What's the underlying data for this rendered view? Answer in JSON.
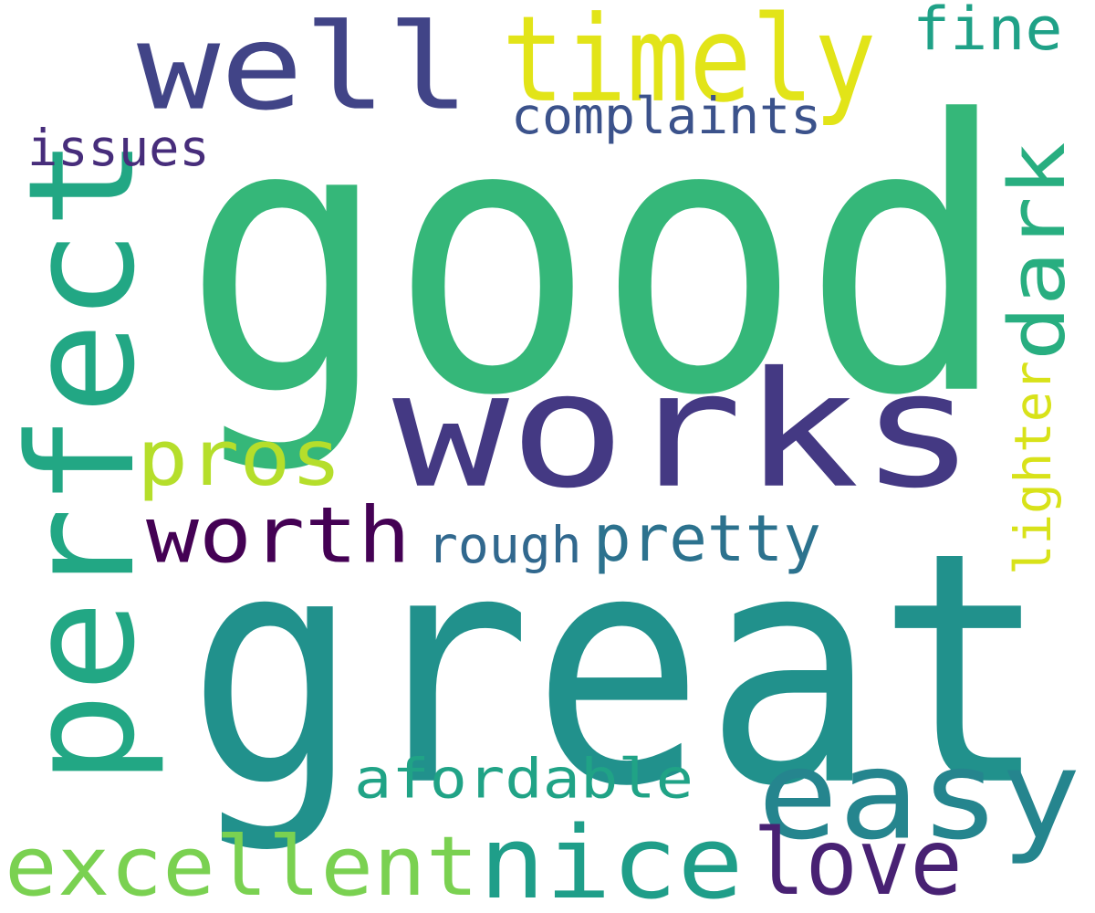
{
  "word_cloud": {
    "words": [
      {
        "id": "good",
        "text": "good",
        "color": "#35b779"
      },
      {
        "id": "great",
        "text": "great",
        "color": "#21918c"
      },
      {
        "id": "works",
        "text": "works",
        "color": "#443983"
      },
      {
        "id": "perfect",
        "text": "perfect",
        "color": "#22a784"
      },
      {
        "id": "well",
        "text": "well",
        "color": "#414487"
      },
      {
        "id": "timely",
        "text": "timely",
        "color": "#e2e418"
      },
      {
        "id": "easy",
        "text": "easy",
        "color": "#25858e"
      },
      {
        "id": "nice",
        "text": "nice",
        "color": "#1f9e89"
      },
      {
        "id": "excellent",
        "text": "excellent",
        "color": "#7ad151"
      },
      {
        "id": "love",
        "text": "love",
        "color": "#482173"
      },
      {
        "id": "worth",
        "text": "worth",
        "color": "#440154"
      },
      {
        "id": "pros",
        "text": "pros",
        "color": "#b5de2b"
      },
      {
        "id": "dark",
        "text": "dark",
        "color": "#28ae80"
      },
      {
        "id": "fine",
        "text": "fine",
        "color": "#1fa187"
      },
      {
        "id": "complaints",
        "text": "complaints",
        "color": "#3b528b"
      },
      {
        "id": "issues",
        "text": "issues",
        "color": "#472d7b"
      },
      {
        "id": "pretty",
        "text": "pretty",
        "color": "#2c728e"
      },
      {
        "id": "rough",
        "text": "rough",
        "color": "#31688e"
      },
      {
        "id": "lighter",
        "text": "lighter",
        "color": "#d8e219"
      },
      {
        "id": "afordable",
        "text": "afordable",
        "color": "#20a386"
      }
    ]
  }
}
